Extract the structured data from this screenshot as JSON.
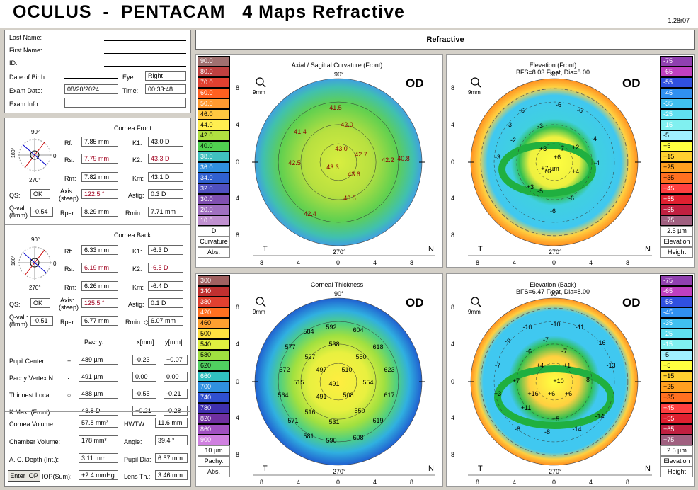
{
  "header": {
    "title": "OCULUS  -  PENTACAM   4 Maps Refractive",
    "version": "1.28r07"
  },
  "patient": {
    "last_name_label": "Last Name:",
    "first_name_label": "First Name:",
    "id_label": "ID:",
    "dob_label": "Date of Birth:",
    "eye_label": "Eye:",
    "eye_value": "Right",
    "exam_date_label": "Exam Date:",
    "exam_date_value": "08/20/2024",
    "time_label": "Time:",
    "time_value": "00:33:48",
    "exam_info_label": "Exam Info:"
  },
  "front": {
    "title": "Cornea Front",
    "rf_label": "Rf:",
    "rf": "7.85 mm",
    "k1_label": "K1:",
    "k1": "43.0 D",
    "rs_label": "Rs:",
    "rs": "7.79 mm",
    "k2_label": "K2:",
    "k2": "43.3 D",
    "rm_label": "Rm:",
    "rm": "7.82 mm",
    "km_label": "Km:",
    "km": "43.1 D",
    "qs_label": "QS:",
    "qs": "OK",
    "axis_label": "Axis:",
    "axis_sub": "(steep)",
    "axis": "122.5 °",
    "astig_label": "Astig:",
    "astig": "0.3 D",
    "qval_label": "Q-val.:",
    "qval_sub": "(8mm)",
    "qval": "-0.54",
    "rper_label": "Rper:",
    "rper": "8.29 mm",
    "rmin_label": "Rmin:",
    "rmin": "7.71 mm",
    "deg90": "90°",
    "deg180": "180°",
    "deg270": "270°",
    "deg0": "0°"
  },
  "back": {
    "title": "Cornea Back",
    "rf_label": "Rf:",
    "rf": "6.33 mm",
    "k1_label": "K1:",
    "k1": "-6.3 D",
    "rs_label": "Rs:",
    "rs": "6.19 mm",
    "k2_label": "K2:",
    "k2": "-6.5 D",
    "rm_label": "Rm:",
    "rm": "6.26 mm",
    "km_label": "Km:",
    "km": "-6.4 D",
    "qs_label": "QS:",
    "qs": "OK",
    "axis_label": "Axis:",
    "axis_sub": "(steep)",
    "axis": "125.5 °",
    "astig_label": "Astig:",
    "astig": "0.1 D",
    "qval_label": "Q-val.:",
    "qval_sub": "(8mm)",
    "qval": "-0.51",
    "rper_label": "Rper:",
    "rper": "6.77 mm",
    "rmin_label": "Rmin: ◇",
    "rmin": "6.07 mm"
  },
  "pachy": {
    "col_pachy": "Pachy:",
    "col_x": "x[mm]",
    "col_y": "y[mm]",
    "rows": [
      {
        "label": "Pupil Center:",
        "sym": "+",
        "pachy": "489 µm",
        "x": "-0.23",
        "y": "+0.07"
      },
      {
        "label": "Pachy Vertex N.:",
        "sym": "·",
        "pachy": "491 µm",
        "x": "0.00",
        "y": "0.00"
      },
      {
        "label": "Thinnest Locat.:",
        "sym": "○",
        "pachy": "488 µm",
        "x": "-0.55",
        "y": "-0.21"
      },
      {
        "label": "K Max. (Front):",
        "sym": "",
        "pachy": "43.8 D",
        "x": "+0.21",
        "y": "-0.28"
      }
    ]
  },
  "volumes": {
    "cv_label": "Cornea Volume:",
    "cv": "57.8 mm³",
    "hwtw_label": "HWTW:",
    "hwtw": "11.6 mm",
    "chv_label": "Chamber Volume:",
    "chv": "178 mm³",
    "angle_label": "Angle:",
    "angle": "39.4 °",
    "acd_label": "A. C. Depth (Int.):",
    "acd": "3.11 mm",
    "pupil_label": "Pupil Dia:",
    "pupil": "6.57 mm",
    "enter_iop": "Enter IOP",
    "iop_label": "IOP(Sum):",
    "iop": "+2.4 mmHg",
    "lens_label": "Lens Th.:",
    "lens": "3.46 mm"
  },
  "refractive_header": "Refractive",
  "maps": {
    "axial_title": "Axial / Sagittal Curvature (Front)",
    "elev_front_title": "Elevation (Front)",
    "elev_front_sub": "BFS=8.03 Float, Dia=8.00",
    "thick_title": "Corneal Thickness",
    "elev_back_title": "Elevation (Back)",
    "elev_back_sub": "BFS=6.47 Float, Dia=8.00",
    "od": "OD",
    "zoom": "9mm",
    "t": "T",
    "n": "N",
    "deg90": "90°",
    "deg270": "270°"
  },
  "scales": {
    "curv": [
      "90.0",
      "80.0",
      "70.0",
      "60.0",
      "50.0",
      "46.0",
      "44.0",
      "42.0",
      "40.0",
      "38.0",
      "36.0",
      "34.0",
      "32.0",
      "30.0",
      "20.0",
      "10.0"
    ],
    "curv_unit": "D",
    "curv_lbl1": "Curvature",
    "curv_lbl2": "Abs.",
    "elev": [
      "-75",
      "-65",
      "-55",
      "-45",
      "-35",
      "-25",
      "-15",
      "-5",
      "+5",
      "+15",
      "+25",
      "+35",
      "+45",
      "+55",
      "+65",
      "+75"
    ],
    "elev_unit": "2.5 µm",
    "elev_lbl1": "Elevation",
    "elev_lbl2": "Height",
    "thick": [
      "300",
      "340",
      "380",
      "420",
      "460",
      "500",
      "540",
      "580",
      "620",
      "660",
      "700",
      "740",
      "780",
      "820",
      "860",
      "900"
    ],
    "thick_unit": "10 µm",
    "thick_lbl1": "Pachy.",
    "thick_lbl2": "Abs."
  },
  "colors": {
    "curv": [
      "#a07070",
      "#c04040",
      "#e04030",
      "#ff6020",
      "#ff9a30",
      "#ffc840",
      "#ffee50",
      "#b0e040",
      "#50d050",
      "#40c0c0",
      "#3090e0",
      "#3060d0",
      "#5050c0",
      "#8050b0",
      "#a070c0",
      "#c090d0"
    ],
    "elev": [
      "#9040b0",
      "#c040c0",
      "#3050e0",
      "#3090f0",
      "#40c0f0",
      "#60e0f0",
      "#80f0f0",
      "#a0f0ff",
      "#ffff40",
      "#ffd030",
      "#ffa020",
      "#ff7020",
      "#ff4040",
      "#e02030",
      "#c02040",
      "#a06080"
    ],
    "thick": [
      "#a06060",
      "#c03030",
      "#e04030",
      "#ff7020",
      "#ffa030",
      "#ffe040",
      "#e0f040",
      "#a0e040",
      "#50d060",
      "#30c0c0",
      "#3090e0",
      "#3050d0",
      "#4030b0",
      "#7030a0",
      "#a050c0",
      "#d080e0"
    ]
  },
  "axial_values": [
    "41.5",
    "42.0",
    "41.4",
    "43.0",
    "42.7",
    "42.5",
    "43.3",
    "43.6",
    "42.2",
    "40.8",
    "43.5",
    "42.4"
  ],
  "ef_values": [
    "-6",
    "-6",
    "-6",
    "-3",
    "-3",
    "-3",
    "+2",
    "+3",
    "+6",
    "-2",
    "-7",
    "+7 µm",
    "+6",
    "+4",
    "+3",
    "-4",
    "-4",
    "-5",
    "-6",
    "-6"
  ],
  "th_values": [
    "592",
    "584",
    "604",
    "577",
    "538",
    "618",
    "527",
    "550",
    "572",
    "497",
    "510",
    "623",
    "515",
    "491",
    "554",
    "564",
    "491",
    "508",
    "617",
    "516",
    "550",
    "571",
    "531",
    "619",
    "581",
    "590",
    "608"
  ],
  "eb_values": [
    "-10",
    "-10",
    "-11",
    "-9",
    "-7",
    "-16",
    "-6",
    "-7",
    "-7",
    "+4",
    "+1",
    "-13",
    "+7",
    "+10",
    "-8",
    "+3",
    "+16",
    "+6",
    "+6",
    "+11",
    "+5",
    "-14",
    "-8",
    "-14",
    "-8"
  ],
  "ticks": [
    "8",
    "4",
    "0",
    "4",
    "8"
  ]
}
